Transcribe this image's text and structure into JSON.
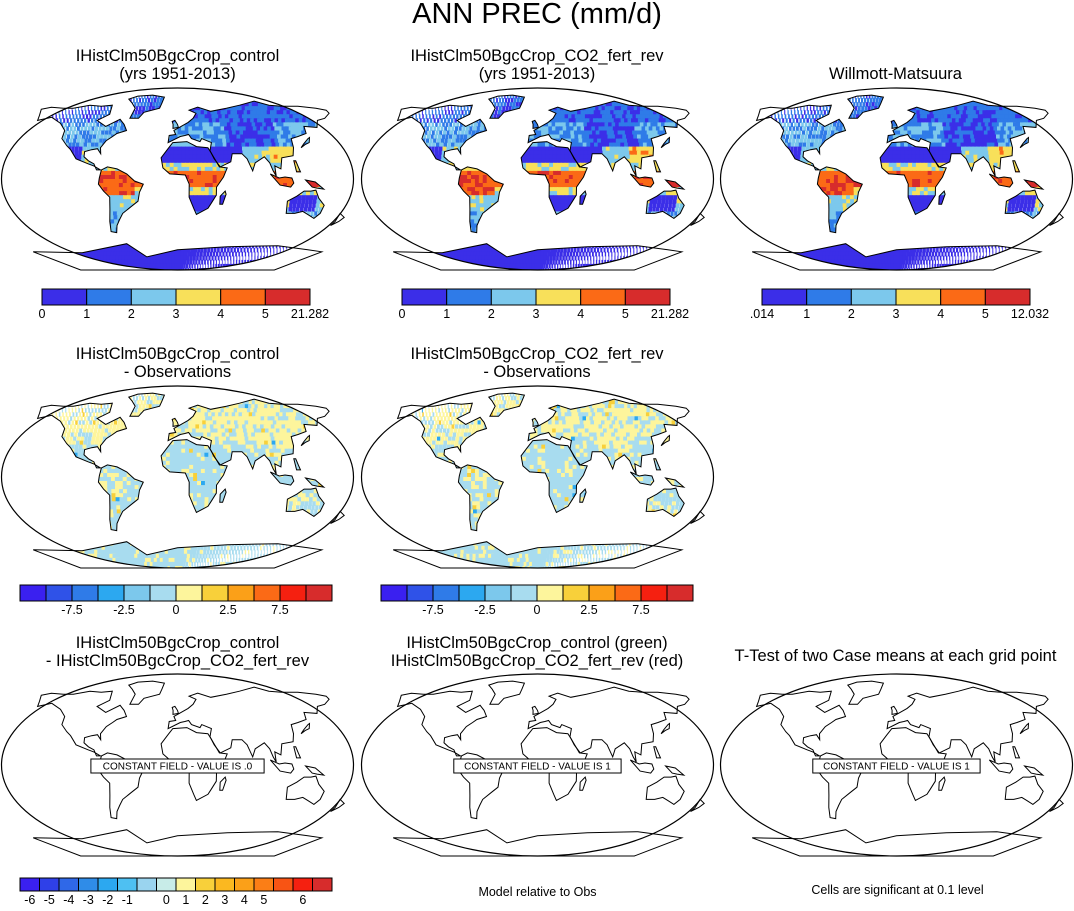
{
  "title": "ANN PREC (mm/d)",
  "panels": [
    {
      "title1": "IHistClm50BgcCrop_control",
      "title2": "(yrs 1951-2013)",
      "kind": "abs"
    },
    {
      "title1": "IHistClm50BgcCrop_CO2_fert_rev",
      "title2": "(yrs 1951-2013)",
      "kind": "abs"
    },
    {
      "title1": "Willmott-Matsuura",
      "title2": "",
      "kind": "abs"
    },
    {
      "title1": "IHistClm50BgcCrop_control",
      "title2": "- Observations",
      "kind": "diff"
    },
    {
      "title1": "IHistClm50BgcCrop_CO2_fert_rev",
      "title2": "- Observations",
      "kind": "diff"
    },
    {
      "title1": "IHistClm50BgcCrop_control",
      "title2": "- IHistClm50BgcCrop_CO2_fert_rev",
      "kind": "const",
      "constant_label": "CONSTANT FIELD - VALUE IS .0"
    },
    {
      "title1": "IHistClm50BgcCrop_control (green)",
      "title2": "IHistClm50BgcCrop_CO2_fert_rev (red)",
      "kind": "const",
      "constant_label": "CONSTANT FIELD - VALUE IS 1"
    },
    {
      "title1": "T-Test of two Case means at each grid point",
      "title2": "",
      "kind": "const",
      "constant_label": "CONSTANT FIELD - VALUE IS 1"
    }
  ],
  "colorbars": {
    "abs_model": {
      "colors": [
        "#3b2ee8",
        "#2f7be8",
        "#7cc8ec",
        "#f8e05a",
        "#fb6a16",
        "#d72c2c"
      ],
      "labels": [
        "0",
        "1",
        "2",
        "3",
        "4",
        "5",
        "21.282"
      ]
    },
    "abs_obs": {
      "colors": [
        "#3b2ee8",
        "#2f7be8",
        "#7cc8ec",
        "#f8e05a",
        "#fb6a16",
        "#d72c2c"
      ],
      "labels": [
        ".014",
        "1",
        "2",
        "3",
        "4",
        "5",
        "12.032"
      ]
    },
    "diff": {
      "colors": [
        "#3a20f0",
        "#2f52e8",
        "#2f7be8",
        "#2ca8f0",
        "#7cc8ec",
        "#a8dcef",
        "#fdf59c",
        "#f8d03a",
        "#fba018",
        "#fb6a16",
        "#f52010",
        "#d72c2c"
      ],
      "labels": [
        "-7.5",
        "-2.5",
        "0",
        "2.5",
        "7.5"
      ]
    },
    "ttest": {
      "colors": [
        "#3a20f0",
        "#2f40e8",
        "#2f68e8",
        "#2f8ce8",
        "#2ca8f0",
        "#4ec0f2",
        "#9ad4ef",
        "#c8ece8",
        "#fdf59c",
        "#f8d03a",
        "#fbb820",
        "#fba018",
        "#fb7e16",
        "#f85414",
        "#f52010",
        "#d72c2c"
      ],
      "labels": [
        "-6",
        "-5",
        "-4",
        "-3",
        "-2",
        "-1",
        "0",
        "1",
        "2",
        "3",
        "4",
        "5",
        "6"
      ]
    }
  },
  "notes": {
    "model_rel": "Model relative to Obs",
    "cells": "Cells are significant at 0.1 level"
  }
}
